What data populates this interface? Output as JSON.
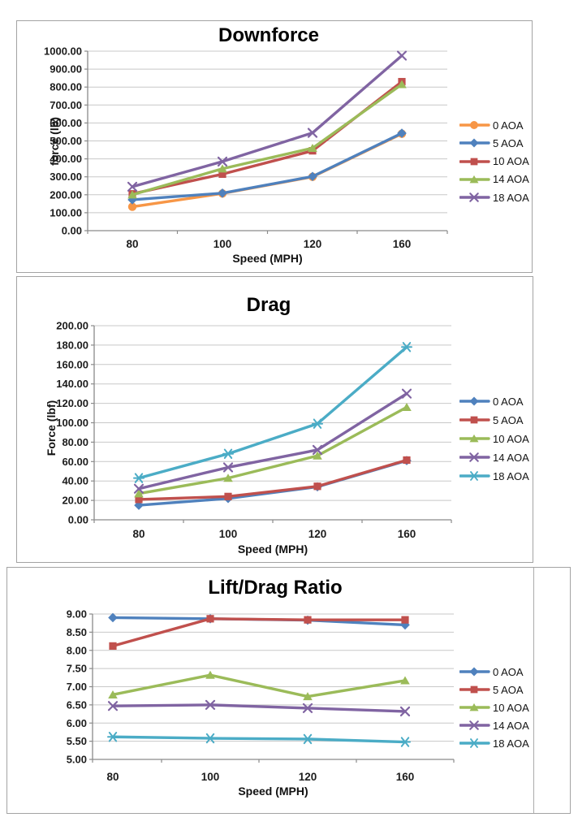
{
  "page": {
    "background": "#ffffff",
    "panel_border_color": "#a3a3a3",
    "gridline_color": "#c8c8c8",
    "axis_color": "#8a8a8a"
  },
  "chart_data": [
    {
      "type": "line",
      "title": "Downforce",
      "xlabel": "Speed (MPH)",
      "ylabel": "force (lb)",
      "categories": [
        "80",
        "100",
        "120",
        "160"
      ],
      "ylim": [
        0,
        1000
      ],
      "ystep": 100,
      "ytick_decimals": 2,
      "grid": true,
      "legend_position": "right",
      "series": [
        {
          "name": "0 AOA",
          "color": "#F79646",
          "marker": "circle",
          "values": [
            133,
            207,
            300,
            540
          ]
        },
        {
          "name": "5 AOA",
          "color": "#4F81BD",
          "marker": "diamond",
          "values": [
            172,
            209,
            302,
            543
          ]
        },
        {
          "name": "10 AOA",
          "color": "#C0504D",
          "marker": "square",
          "values": [
            205,
            315,
            445,
            830
          ]
        },
        {
          "name": "14 AOA",
          "color": "#9BBB59",
          "marker": "triangle",
          "values": [
            200,
            345,
            460,
            815
          ]
        },
        {
          "name": "18 AOA",
          "color": "#8064A2",
          "marker": "x",
          "values": [
            245,
            385,
            545,
            975
          ]
        }
      ]
    },
    {
      "type": "line",
      "title": "Drag",
      "xlabel": "Speed (MPH)",
      "ylabel": "Force (lbf)",
      "categories": [
        "80",
        "100",
        "120",
        "160"
      ],
      "ylim": [
        0,
        200
      ],
      "ystep": 20,
      "ytick_decimals": 2,
      "grid": true,
      "legend_position": "right",
      "series": [
        {
          "name": "0 AOA",
          "color": "#4F81BD",
          "marker": "diamond",
          "values": [
            15,
            22,
            34,
            61
          ]
        },
        {
          "name": "5 AOA",
          "color": "#C0504D",
          "marker": "square",
          "values": [
            21,
            24,
            34.5,
            61.5
          ]
        },
        {
          "name": "10 AOA",
          "color": "#9BBB59",
          "marker": "triangle",
          "values": [
            27,
            43,
            66,
            116
          ]
        },
        {
          "name": "14 AOA",
          "color": "#8064A2",
          "marker": "x",
          "values": [
            32,
            54,
            72,
            130
          ]
        },
        {
          "name": "18 AOA",
          "color": "#4BACC6",
          "marker": "star",
          "values": [
            43,
            68,
            99,
            178
          ]
        }
      ]
    },
    {
      "type": "line",
      "title": "Lift/Drag Ratio",
      "xlabel": "Speed (MPH)",
      "ylabel": "",
      "categories": [
        "80",
        "100",
        "120",
        "160"
      ],
      "ylim": [
        5,
        9
      ],
      "ystep": 0.5,
      "ytick_decimals": 2,
      "grid": true,
      "legend_position": "right",
      "series": [
        {
          "name": "0 AOA",
          "color": "#4F81BD",
          "marker": "diamond",
          "values": [
            8.9,
            8.87,
            8.83,
            8.7
          ]
        },
        {
          "name": "5 AOA",
          "color": "#C0504D",
          "marker": "square",
          "values": [
            8.12,
            8.87,
            8.84,
            8.84
          ]
        },
        {
          "name": "10 AOA",
          "color": "#9BBB59",
          "marker": "triangle",
          "values": [
            6.78,
            7.32,
            6.73,
            7.17
          ]
        },
        {
          "name": "14 AOA",
          "color": "#8064A2",
          "marker": "x",
          "values": [
            6.47,
            6.5,
            6.41,
            6.32
          ]
        },
        {
          "name": "18 AOA",
          "color": "#4BACC6",
          "marker": "star",
          "values": [
            5.62,
            5.58,
            5.56,
            5.48
          ]
        }
      ]
    }
  ]
}
